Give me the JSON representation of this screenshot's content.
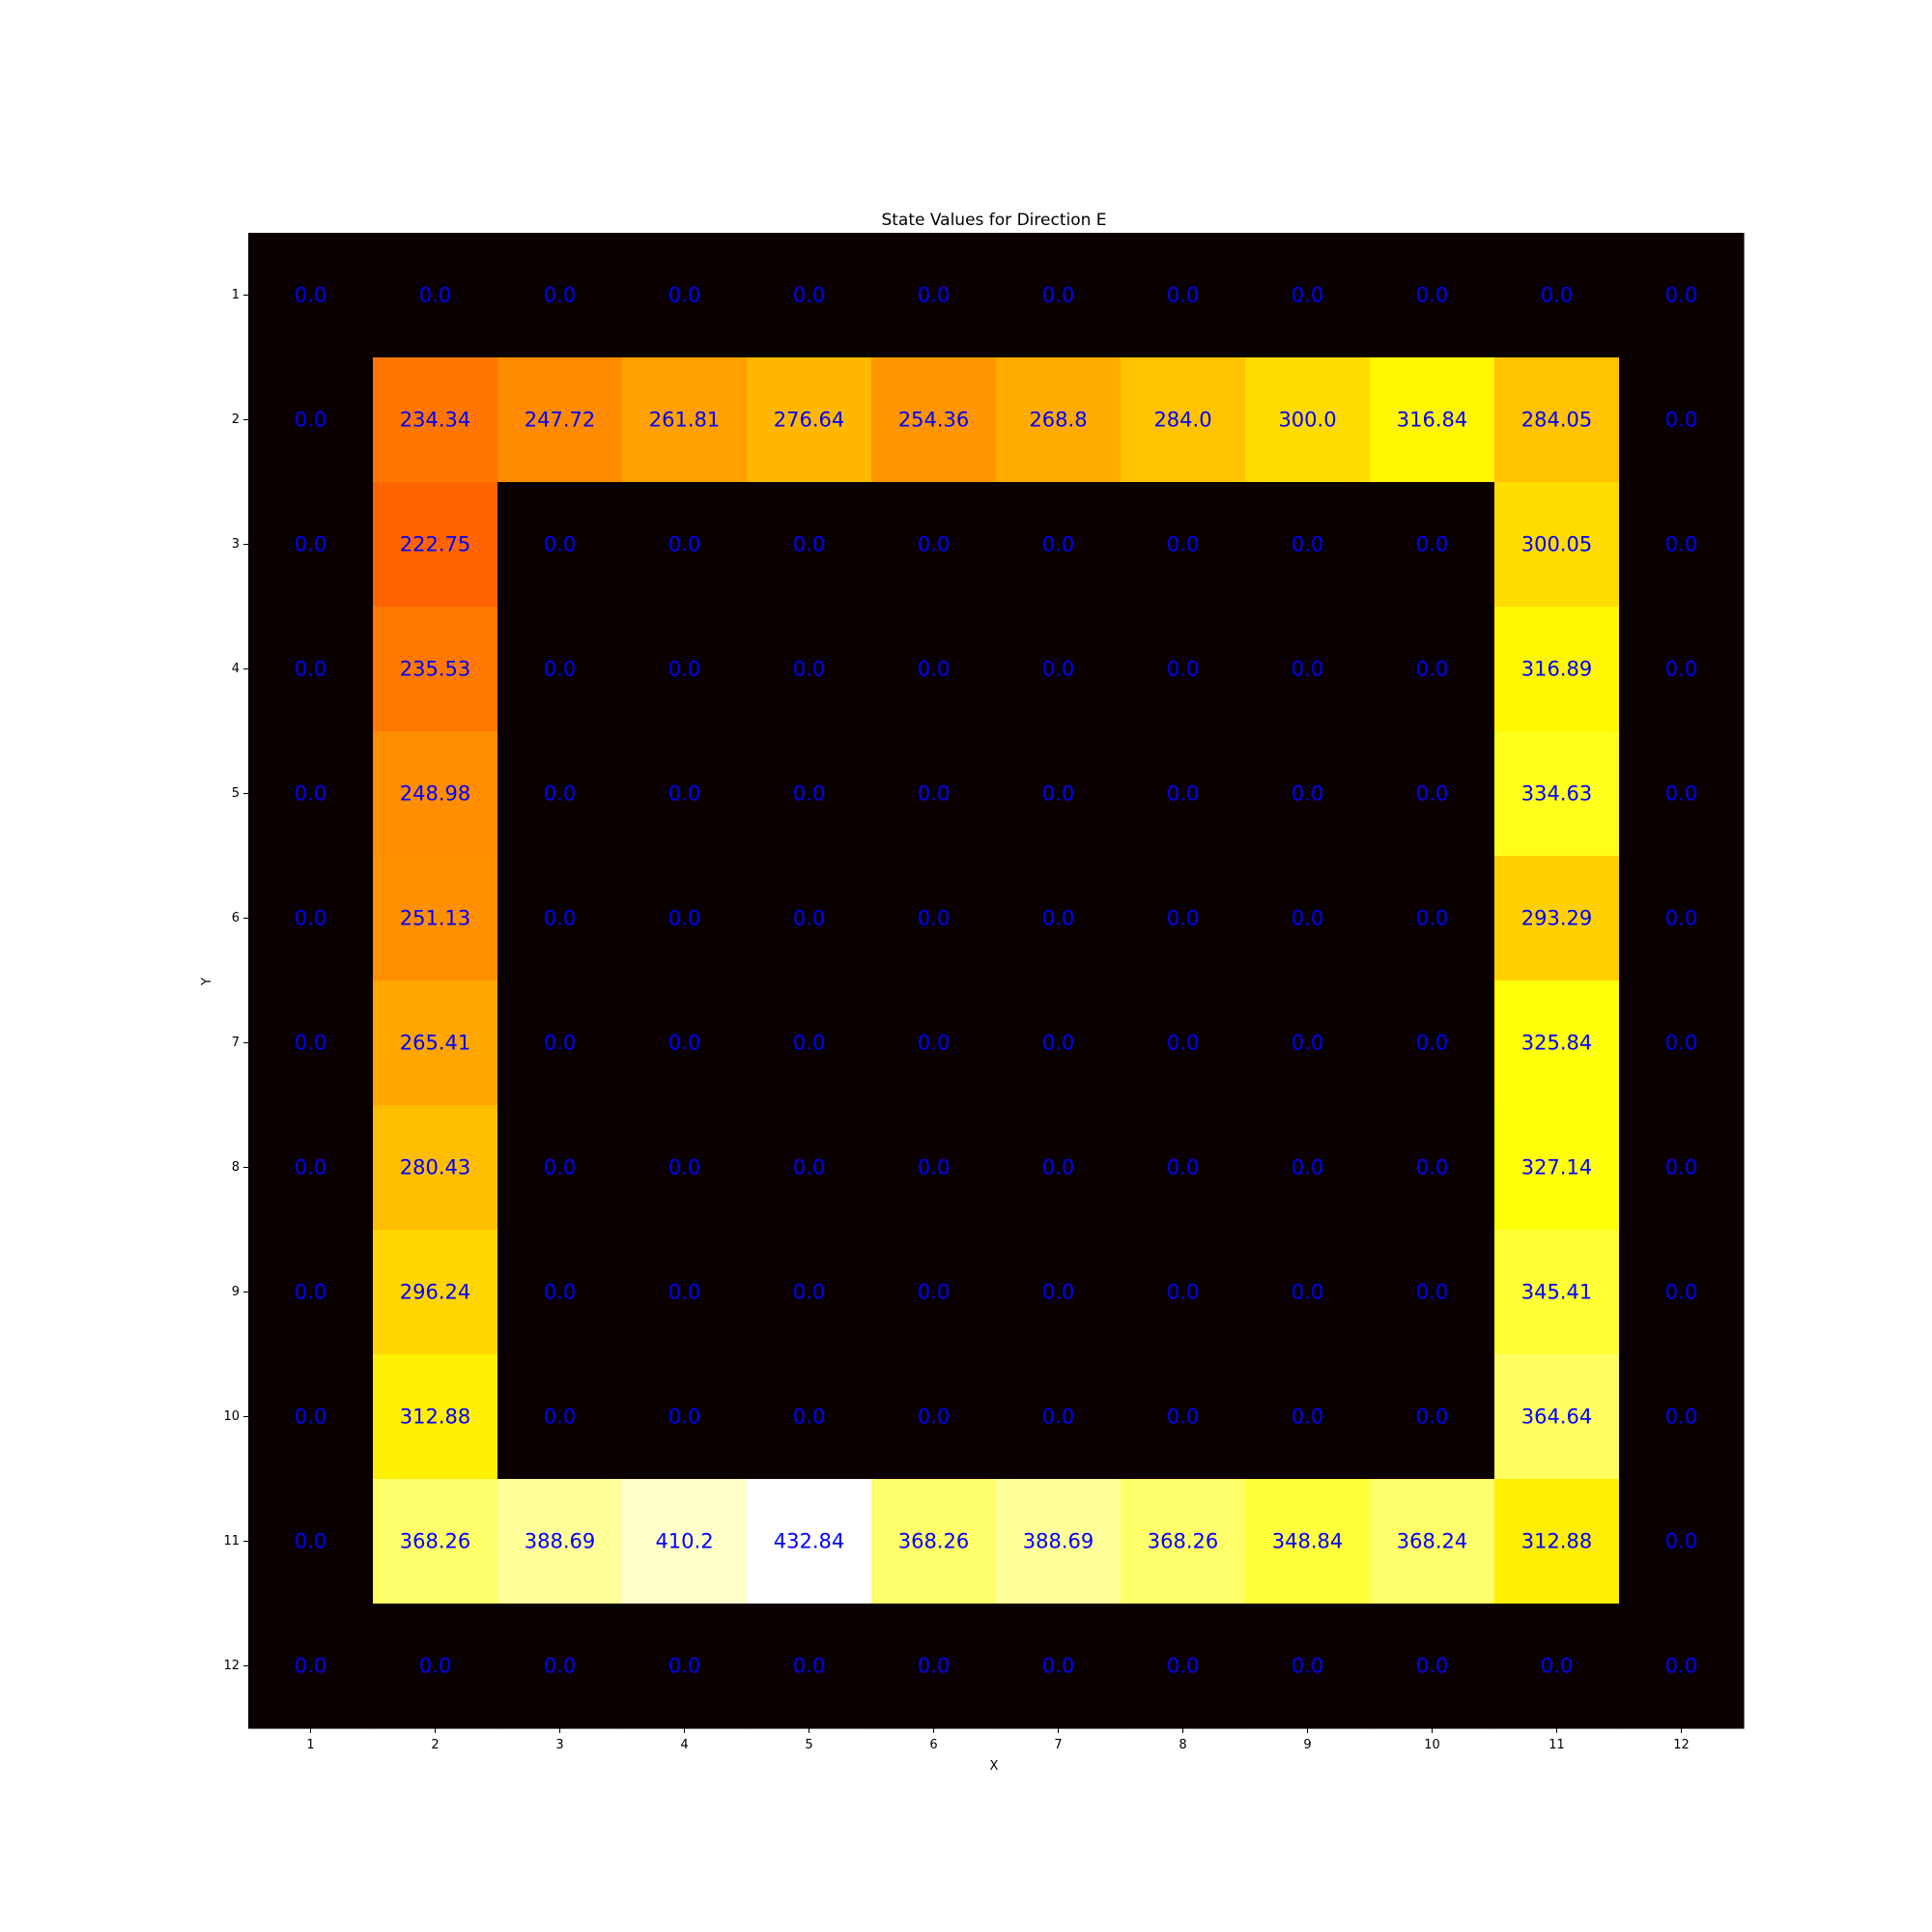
{
  "chart_data": {
    "type": "heatmap",
    "title": "State Values for Direction E",
    "xlabel": "X",
    "ylabel": "Y",
    "x_ticks": [
      "1",
      "2",
      "3",
      "4",
      "5",
      "6",
      "7",
      "8",
      "9",
      "10",
      "11",
      "12"
    ],
    "y_ticks": [
      "1",
      "2",
      "3",
      "4",
      "5",
      "6",
      "7",
      "8",
      "9",
      "10",
      "11",
      "12"
    ],
    "colormap": "hot",
    "value_range": [
      0,
      432.84
    ],
    "annotation_color": "#0000ff",
    "grid": false,
    "values": [
      [
        0.0,
        0.0,
        0.0,
        0.0,
        0.0,
        0.0,
        0.0,
        0.0,
        0.0,
        0.0,
        0.0,
        0.0
      ],
      [
        0.0,
        234.34,
        247.72,
        261.81,
        276.64,
        254.36,
        268.8,
        284.0,
        300.0,
        316.84,
        284.05,
        0.0
      ],
      [
        0.0,
        222.75,
        0.0,
        0.0,
        0.0,
        0.0,
        0.0,
        0.0,
        0.0,
        0.0,
        300.05,
        0.0
      ],
      [
        0.0,
        235.53,
        0.0,
        0.0,
        0.0,
        0.0,
        0.0,
        0.0,
        0.0,
        0.0,
        316.89,
        0.0
      ],
      [
        0.0,
        248.98,
        0.0,
        0.0,
        0.0,
        0.0,
        0.0,
        0.0,
        0.0,
        0.0,
        334.63,
        0.0
      ],
      [
        0.0,
        251.13,
        0.0,
        0.0,
        0.0,
        0.0,
        0.0,
        0.0,
        0.0,
        0.0,
        293.29,
        0.0
      ],
      [
        0.0,
        265.41,
        0.0,
        0.0,
        0.0,
        0.0,
        0.0,
        0.0,
        0.0,
        0.0,
        325.84,
        0.0
      ],
      [
        0.0,
        280.43,
        0.0,
        0.0,
        0.0,
        0.0,
        0.0,
        0.0,
        0.0,
        0.0,
        327.14,
        0.0
      ],
      [
        0.0,
        296.24,
        0.0,
        0.0,
        0.0,
        0.0,
        0.0,
        0.0,
        0.0,
        0.0,
        345.41,
        0.0
      ],
      [
        0.0,
        312.88,
        0.0,
        0.0,
        0.0,
        0.0,
        0.0,
        0.0,
        0.0,
        0.0,
        364.64,
        0.0
      ],
      [
        0.0,
        368.26,
        388.69,
        410.2,
        432.84,
        368.26,
        388.69,
        368.26,
        348.84,
        368.24,
        312.88,
        0.0
      ],
      [
        0.0,
        0.0,
        0.0,
        0.0,
        0.0,
        0.0,
        0.0,
        0.0,
        0.0,
        0.0,
        0.0,
        0.0
      ]
    ]
  }
}
